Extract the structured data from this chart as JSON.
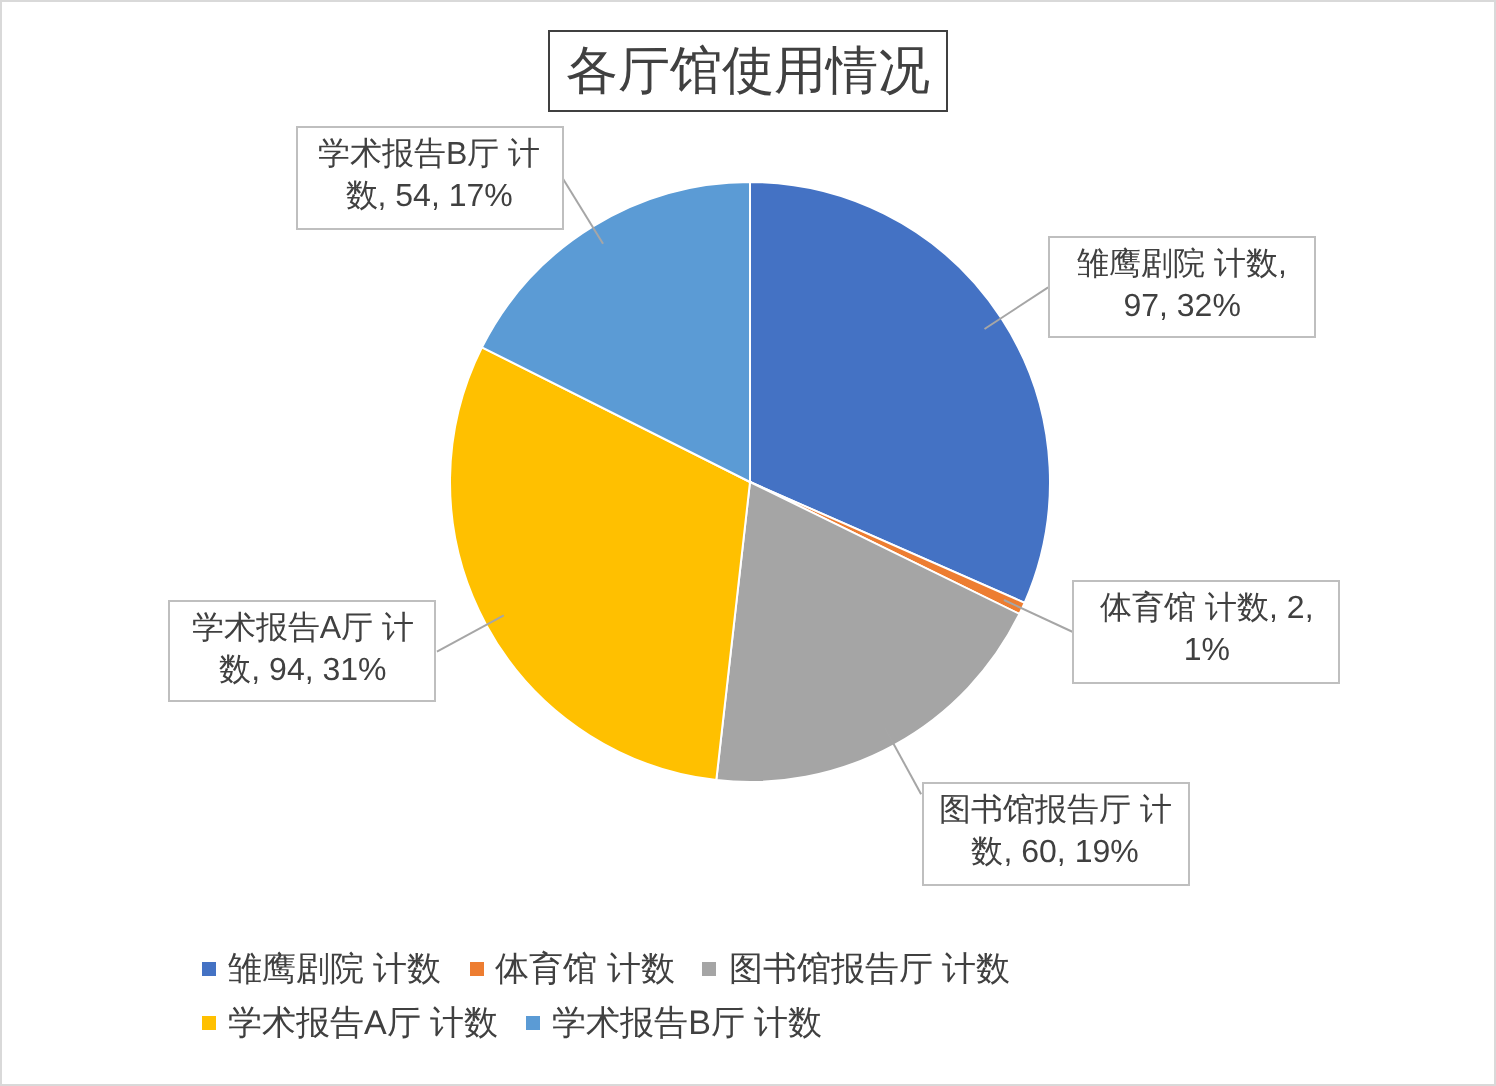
{
  "chart_data": {
    "type": "pie",
    "title": "各厅馆使用情况",
    "categories": [
      "雏鹰剧院 计数",
      "体育馆 计数",
      "图书馆报告厅 计数",
      "学术报告A厅 计数",
      "学术报告B厅 计数"
    ],
    "values": [
      97,
      2,
      60,
      94,
      54
    ],
    "colors": [
      "#4472c4",
      "#ed7d31",
      "#a5a5a5",
      "#ffc000",
      "#5b9bd5"
    ],
    "value_labels": [
      "雏鹰剧院 计数, 97, 32%",
      "体育馆 计数, 2, 1%",
      "图书馆报告厅 计数, 60, 19%",
      "学术报告A厅 计数, 94, 31%",
      "学术报告B厅 计数, 54, 17%"
    ],
    "legend": "bottom"
  }
}
